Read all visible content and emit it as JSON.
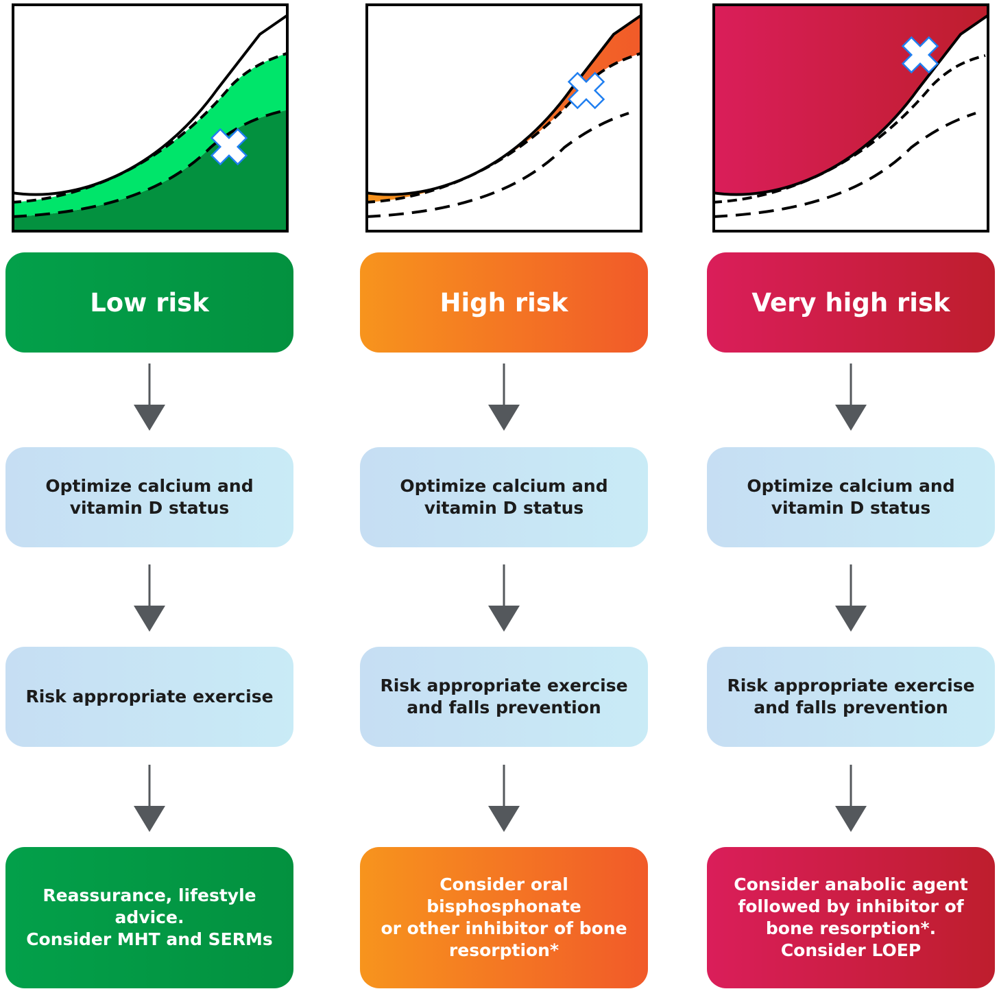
{
  "columns": [
    {
      "risk": "Low risk",
      "step1": "Optimize calcium and\nvitamin D status",
      "step2": "Risk appropriate exercise",
      "action": "Reassurance, lifestyle advice.\nConsider MHT and SERMs",
      "color": "green"
    },
    {
      "risk": "High risk",
      "step1": "Optimize calcium and\nvitamin D status",
      "step2": "Risk appropriate exercise\nand falls prevention",
      "action": "Consider oral bisphosphonate\nor other inhibitor of bone\nresorption*",
      "color": "orange"
    },
    {
      "risk": "Very high risk",
      "step1": "Optimize calcium and\nvitamin D status",
      "step2": "Risk appropriate exercise\nand falls prevention",
      "action": "Consider anabolic agent\nfollowed by inhibitor of\nbone resorption*.\nConsider LOEP",
      "color": "red"
    }
  ],
  "colors": {
    "green_dark": "#03913f",
    "green_light": "#00e56a",
    "orange_start": "#f7941d",
    "orange_end": "#f15a29",
    "red_start": "#da1e5a",
    "red_end": "#be1e2d",
    "step_box": "#c8e4f4",
    "arrow": "#54585c",
    "marker_outline": "#1e7ef0"
  },
  "icons": {
    "marker": "cross-marker-icon",
    "arrow": "arrow-down-icon"
  }
}
